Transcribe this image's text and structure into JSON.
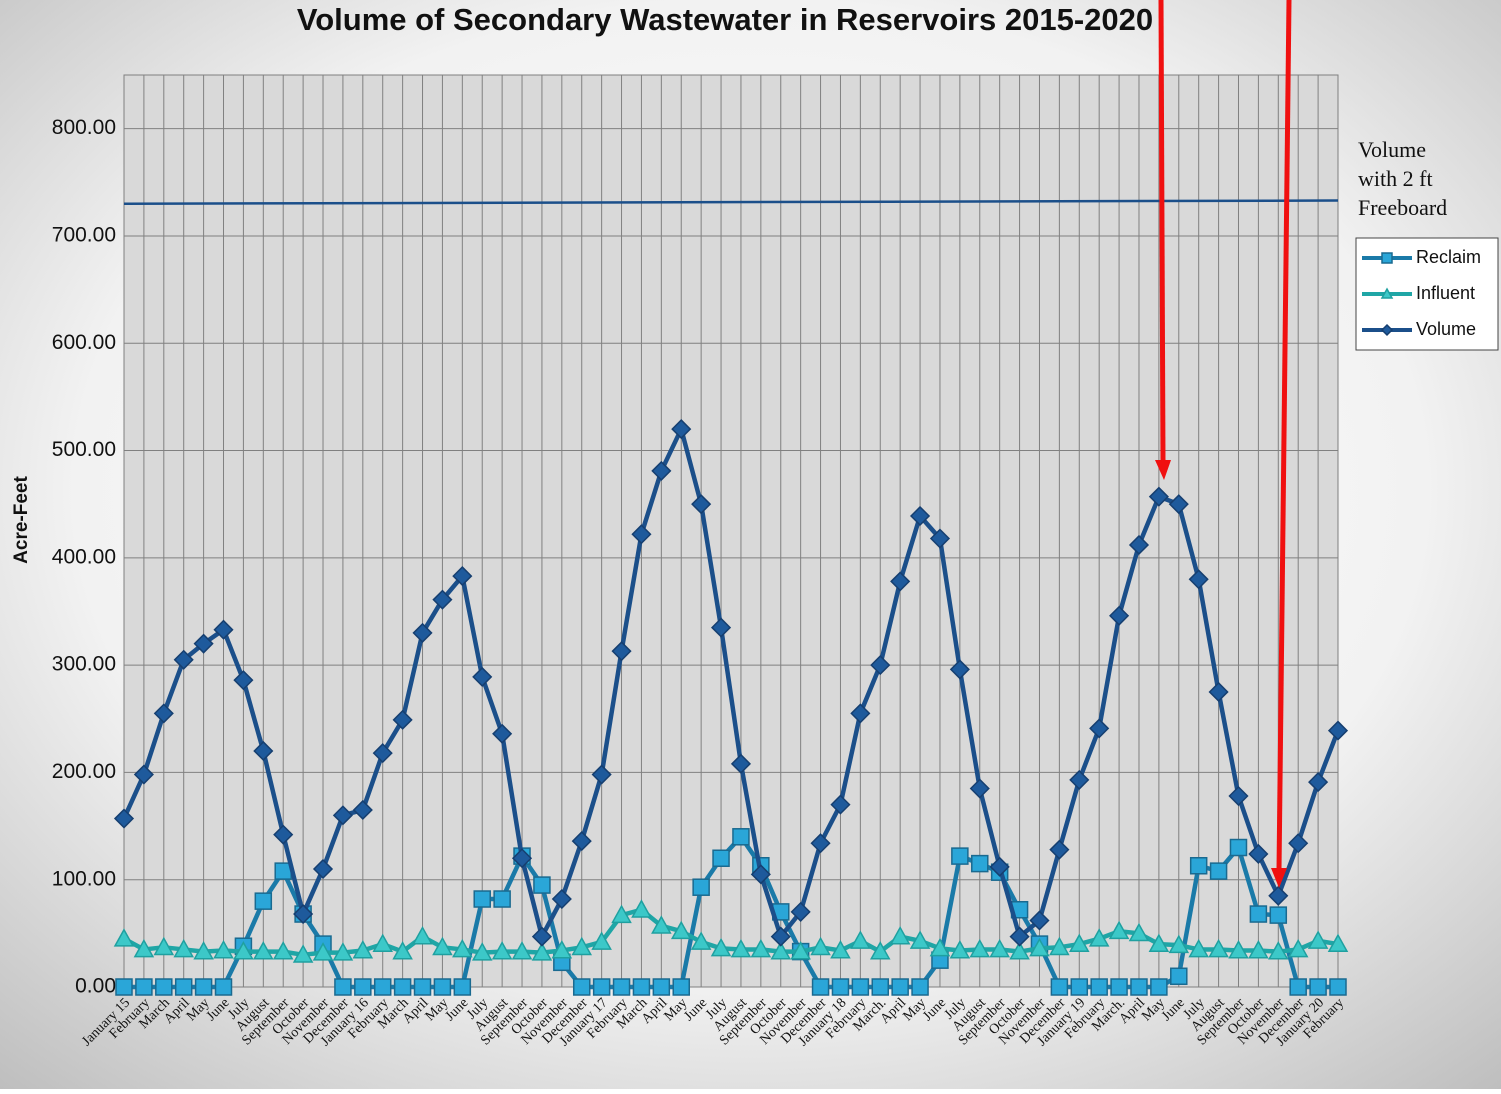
{
  "chart_data": {
    "type": "line",
    "title": "Volume of Secondary Wastewater in Reservoirs   2015-2020",
    "y_label": "Acre-Feet",
    "categories": [
      "January 15",
      "February",
      "March",
      "April",
      "May",
      "June",
      "July",
      "August",
      "September",
      "October",
      "November",
      "December",
      "January 16",
      "February",
      "March",
      "April",
      "May",
      "June",
      "July",
      "August",
      "September",
      "October",
      "November",
      "December",
      "January 17",
      "February",
      "March",
      "April",
      "May",
      "June",
      "July",
      "August",
      "September",
      "October",
      "November",
      "December",
      "January 18",
      "February",
      "March.",
      "April",
      "May",
      "June",
      "July",
      "August",
      "September",
      "October",
      "November",
      "December",
      "January 19",
      "February",
      "March.",
      "April",
      "May",
      "June",
      "July",
      "August",
      "September",
      "October",
      "November",
      "December",
      "January 20",
      "February"
    ],
    "series": [
      {
        "name": "Reclaim",
        "color": "#1a7aa8",
        "marker_color": "#2aa6d8",
        "marker": "square",
        "values": [
          0,
          0,
          0,
          0,
          0,
          0,
          38,
          80,
          108,
          68,
          40,
          0,
          0,
          0,
          0,
          0,
          0,
          0,
          82,
          82,
          122,
          95,
          23,
          0,
          0,
          0,
          0,
          0,
          0,
          93,
          120,
          140,
          113,
          70,
          33,
          0,
          0,
          0,
          0,
          0,
          0,
          25,
          122,
          115,
          107,
          72,
          40,
          0,
          0,
          0,
          0,
          0,
          0,
          10,
          113,
          108,
          130,
          68,
          67,
          0,
          0,
          0
        ]
      },
      {
        "name": "Influent",
        "color": "#1fa6a6",
        "marker_color": "#3cc8c8",
        "marker": "triangle",
        "values": [
          45,
          35,
          37,
          35,
          33,
          34,
          33,
          33,
          33,
          30,
          32,
          32,
          34,
          40,
          33,
          47,
          37,
          35,
          32,
          33,
          33,
          32,
          34,
          37,
          42,
          67,
          72,
          57,
          52,
          42,
          36,
          35,
          35,
          33,
          33,
          37,
          34,
          43,
          33,
          47,
          43,
          36,
          34,
          35,
          35,
          33,
          36,
          37,
          40,
          45,
          52,
          50,
          40,
          39,
          35,
          35,
          34,
          34,
          33,
          35,
          43,
          40
        ]
      },
      {
        "name": "Volume",
        "color": "#1b4f8a",
        "marker_color": "#1e5a9c",
        "marker": "diamond",
        "values": [
          157,
          198,
          255,
          305,
          320,
          333,
          286,
          220,
          142,
          68,
          110,
          160,
          165,
          218,
          249,
          330,
          361,
          383,
          289,
          236,
          120,
          47,
          82,
          136,
          198,
          313,
          422,
          481,
          520,
          450,
          335,
          208,
          105,
          47,
          70,
          134,
          170,
          255,
          300,
          378,
          439,
          418,
          296,
          185,
          112,
          47,
          62,
          128,
          193,
          241,
          346,
          412,
          457,
          450,
          380,
          275,
          178,
          124,
          85,
          134,
          191,
          239
        ]
      }
    ],
    "reference_line": {
      "label": [
        "Volume",
        "with 2 ft",
        "Freeboard"
      ],
      "values": [
        730,
        733
      ],
      "color": "#1b4f8a"
    },
    "ylim": [
      0,
      850
    ],
    "yticks": [
      {
        "value": 0,
        "label": "0.00"
      },
      {
        "value": 100,
        "label": "100.00"
      },
      {
        "value": 200,
        "label": "200.00"
      },
      {
        "value": 300,
        "label": "300.00"
      },
      {
        "value": 400,
        "label": "400.00"
      },
      {
        "value": 500,
        "label": "500.00"
      },
      {
        "value": 600,
        "label": "600.00"
      },
      {
        "value": 700,
        "label": "700.00"
      },
      {
        "value": 800,
        "label": "800.00"
      }
    ],
    "grid": true,
    "legend": "right"
  }
}
